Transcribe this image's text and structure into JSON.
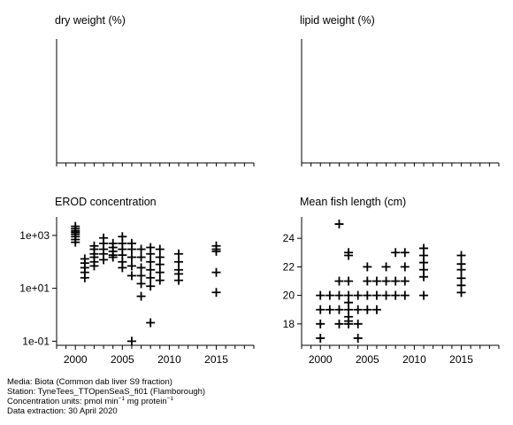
{
  "chart_data": [
    {
      "type": "scatter",
      "title": "dry weight (%)",
      "xlim": [
        1998,
        2019
      ],
      "x_ticks": [
        1998,
        1999,
        2000,
        2001,
        2002,
        2003,
        2004,
        2005,
        2006,
        2007,
        2008,
        2009,
        2010,
        2011,
        2012,
        2013,
        2014,
        2015,
        2016,
        2017,
        2018,
        2019
      ],
      "x_tick_labels": [],
      "y_ticks": [],
      "points": [],
      "marker": "plus"
    },
    {
      "type": "scatter",
      "title": "lipid weight (%)",
      "xlim": [
        1998,
        2019
      ],
      "x_ticks": [
        1998,
        1999,
        2000,
        2001,
        2002,
        2003,
        2004,
        2005,
        2006,
        2007,
        2008,
        2009,
        2010,
        2011,
        2012,
        2013,
        2014,
        2015,
        2016,
        2017,
        2018,
        2019
      ],
      "x_tick_labels": [],
      "y_ticks": [],
      "points": [],
      "marker": "plus"
    },
    {
      "type": "scatter",
      "title": "EROD concentration",
      "scale": "log",
      "xlim": [
        1998,
        2019
      ],
      "ylim": [
        0.07,
        5000
      ],
      "x_ticks": [
        1998,
        1999,
        2000,
        2001,
        2002,
        2003,
        2004,
        2005,
        2006,
        2007,
        2008,
        2009,
        2010,
        2011,
        2012,
        2013,
        2014,
        2015,
        2016,
        2017,
        2018,
        2019
      ],
      "x_tick_labels": [
        {
          "value": 2000,
          "label": "2000"
        },
        {
          "value": 2005,
          "label": "2005"
        },
        {
          "value": 2010,
          "label": "2010"
        },
        {
          "value": 2015,
          "label": "2015"
        }
      ],
      "y_ticks": [
        {
          "value": 0.1,
          "label": "1e-01"
        },
        {
          "value": 10,
          "label": "1e+01"
        },
        {
          "value": 1000,
          "label": "1e+03"
        }
      ],
      "marker": "plus",
      "points": [
        [
          2000,
          2200
        ],
        [
          2000,
          1800
        ],
        [
          2000,
          1500
        ],
        [
          2000,
          1300
        ],
        [
          2000,
          1100
        ],
        [
          2000,
          900
        ],
        [
          2000,
          700
        ],
        [
          2000,
          550
        ],
        [
          2001,
          130
        ],
        [
          2001,
          90
        ],
        [
          2001,
          60
        ],
        [
          2001,
          40
        ],
        [
          2001,
          25
        ],
        [
          2002,
          400
        ],
        [
          2002,
          300
        ],
        [
          2002,
          200
        ],
        [
          2002,
          150
        ],
        [
          2002,
          100
        ],
        [
          2002,
          70
        ],
        [
          2003,
          800
        ],
        [
          2003,
          500
        ],
        [
          2003,
          300
        ],
        [
          2003,
          200
        ],
        [
          2003,
          120
        ],
        [
          2004,
          500
        ],
        [
          2004,
          350
        ],
        [
          2004,
          250
        ],
        [
          2004,
          180
        ],
        [
          2004,
          150
        ],
        [
          2005,
          900
        ],
        [
          2005,
          500
        ],
        [
          2005,
          300
        ],
        [
          2005,
          180
        ],
        [
          2005,
          100
        ],
        [
          2005,
          60
        ],
        [
          2006,
          500
        ],
        [
          2006,
          300
        ],
        [
          2006,
          150
        ],
        [
          2006,
          70
        ],
        [
          2006,
          30
        ],
        [
          2006,
          0.1
        ],
        [
          2007,
          300
        ],
        [
          2007,
          150
        ],
        [
          2007,
          60
        ],
        [
          2007,
          30
        ],
        [
          2007,
          15
        ],
        [
          2007,
          5
        ],
        [
          2008,
          350
        ],
        [
          2008,
          200
        ],
        [
          2008,
          100
        ],
        [
          2008,
          50
        ],
        [
          2008,
          25
        ],
        [
          2008,
          12
        ],
        [
          2008,
          0.5
        ],
        [
          2009,
          300
        ],
        [
          2009,
          150
        ],
        [
          2009,
          80
        ],
        [
          2009,
          40
        ],
        [
          2009,
          20
        ],
        [
          2011,
          200
        ],
        [
          2011,
          100
        ],
        [
          2011,
          50
        ],
        [
          2011,
          35
        ],
        [
          2011,
          20
        ],
        [
          2015,
          400
        ],
        [
          2015,
          300
        ],
        [
          2015,
          250
        ],
        [
          2015,
          40
        ],
        [
          2015,
          7
        ]
      ]
    },
    {
      "type": "scatter",
      "title": "Mean fish length (cm)",
      "xlim": [
        1998,
        2019
      ],
      "ylim": [
        16.5,
        25.5
      ],
      "x_ticks": [
        1998,
        1999,
        2000,
        2001,
        2002,
        2003,
        2004,
        2005,
        2006,
        2007,
        2008,
        2009,
        2010,
        2011,
        2012,
        2013,
        2014,
        2015,
        2016,
        2017,
        2018,
        2019
      ],
      "x_tick_labels": [
        {
          "value": 2000,
          "label": "2000"
        },
        {
          "value": 2005,
          "label": "2005"
        },
        {
          "value": 2010,
          "label": "2010"
        },
        {
          "value": 2015,
          "label": "2015"
        }
      ],
      "y_ticks": [
        {
          "value": 18,
          "label": "18"
        },
        {
          "value": 20,
          "label": "20"
        },
        {
          "value": 22,
          "label": "22"
        },
        {
          "value": 24,
          "label": "24"
        }
      ],
      "marker": "plus",
      "points": [
        [
          2000,
          20
        ],
        [
          2000,
          19
        ],
        [
          2000,
          18
        ],
        [
          2000,
          17
        ],
        [
          2001,
          20
        ],
        [
          2001,
          19
        ],
        [
          2002,
          25
        ],
        [
          2002,
          21
        ],
        [
          2002,
          20
        ],
        [
          2002,
          19
        ],
        [
          2002,
          18
        ],
        [
          2003,
          23
        ],
        [
          2003,
          22.8
        ],
        [
          2003,
          21
        ],
        [
          2003,
          20
        ],
        [
          2003,
          19.5
        ],
        [
          2003,
          19
        ],
        [
          2003,
          18.5
        ],
        [
          2003,
          18.2
        ],
        [
          2003,
          18
        ],
        [
          2004,
          20
        ],
        [
          2004,
          19
        ],
        [
          2004,
          18
        ],
        [
          2004,
          17
        ],
        [
          2005,
          22
        ],
        [
          2005,
          21
        ],
        [
          2005,
          20
        ],
        [
          2005,
          19
        ],
        [
          2006,
          21
        ],
        [
          2006,
          20
        ],
        [
          2006,
          19
        ],
        [
          2007,
          22
        ],
        [
          2007,
          21
        ],
        [
          2007,
          20
        ],
        [
          2008,
          23
        ],
        [
          2008,
          21
        ],
        [
          2008,
          20
        ],
        [
          2009,
          23
        ],
        [
          2009,
          22
        ],
        [
          2009,
          21
        ],
        [
          2009,
          20
        ],
        [
          2011,
          23.3
        ],
        [
          2011,
          22.8
        ],
        [
          2011,
          22.3
        ],
        [
          2011,
          21.8
        ],
        [
          2011,
          21.3
        ],
        [
          2011,
          20
        ],
        [
          2015,
          22.8
        ],
        [
          2015,
          22.2
        ],
        [
          2015,
          21.8
        ],
        [
          2015,
          21.2
        ],
        [
          2015,
          20.7
        ],
        [
          2015,
          20.2
        ]
      ]
    }
  ],
  "footer": {
    "media": "Media: Biota (Common dab liver S9 fraction)",
    "station": "Station: TyneTees_TTOpenSeaS_fi01 (Flamborough)",
    "units_prefix": "Concentration units: pmol min",
    "units_exp1": "−1",
    "units_mid": " mg protein",
    "units_exp2": "−1",
    "extraction": "Data extraction: 30 April 2020"
  }
}
